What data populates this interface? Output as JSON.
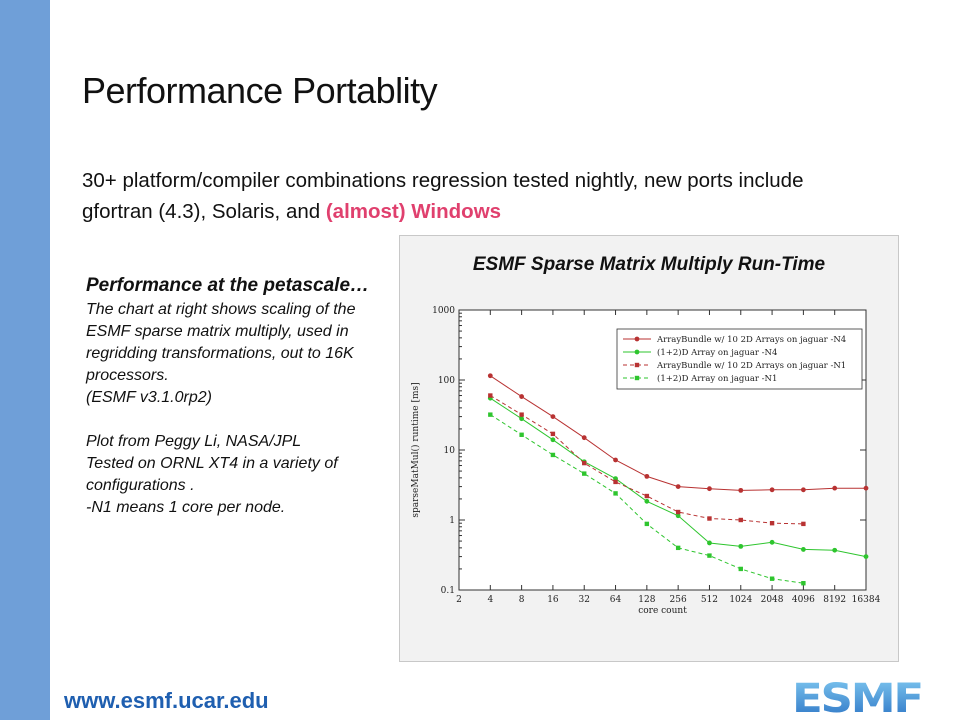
{
  "slide": {
    "title": "Performance Portablity",
    "subtitle_main": "30+ platform/compiler combinations regression tested nightly, new ports include gfortran (4.3), Solaris, and ",
    "subtitle_highlight": "(almost) Windows",
    "left": {
      "heading": "Performance at the petascale…",
      "p1": "The chart at right shows scaling of the ESMF sparse matrix multiply, used in regridding transformations, out to 16K processors.",
      "p2": "(ESMF v3.1.0rp2)",
      "p3": "Plot from Peggy Li, NASA/JPL",
      "p4": "Tested on ORNL XT4 in a variety of configurations .",
      "p5": "-N1 means 1 core per node."
    },
    "url": "www.esmf.ucar.edu",
    "logo_text": "ESMF",
    "colors": {
      "sidebar": "#6f9fd8",
      "highlight": "#e0406e",
      "url": "#1f5fb0",
      "logo": "#3a8fd0"
    }
  },
  "chart_data": {
    "type": "line",
    "title": "ESMF Sparse Matrix Multiply Run-Time",
    "xlabel": "core count",
    "ylabel": "sparseMatMul() runtime [ms]",
    "x_scale": "log2",
    "y_scale": "log10",
    "xlim": [
      2,
      16384
    ],
    "ylim": [
      0.1,
      1000
    ],
    "x_ticks": [
      "2",
      "4",
      "8",
      "16",
      "32",
      "64",
      "128",
      "256",
      "512",
      "1024",
      "2048",
      "4096",
      "8192",
      "16384"
    ],
    "y_ticks": [
      "0.1",
      "1",
      "10",
      "100",
      "1000"
    ],
    "legend_position": "top-right",
    "grid": false,
    "series": [
      {
        "name": "ArrayBundle w/ 10 2D Arrays on jaguar -N4",
        "color": "#b83232",
        "dash": false,
        "marker": "circle",
        "x": [
          4,
          8,
          16,
          32,
          64,
          128,
          256,
          512,
          1024,
          2048,
          4096,
          8192,
          16384
        ],
        "y": [
          115,
          58,
          30,
          15,
          7.2,
          4.2,
          3.0,
          2.8,
          2.65,
          2.7,
          2.7,
          2.85,
          2.85
        ]
      },
      {
        "name": "(1+2)D Array on jaguar -N4",
        "color": "#2ec52e",
        "dash": false,
        "marker": "circle",
        "x": [
          4,
          8,
          16,
          32,
          64,
          128,
          256,
          512,
          1024,
          2048,
          4096,
          8192,
          16384
        ],
        "y": [
          55,
          28,
          14,
          6.8,
          3.9,
          1.85,
          1.15,
          0.47,
          0.42,
          0.48,
          0.38,
          0.37,
          0.3
        ]
      },
      {
        "name": "ArrayBundle w/ 10 2D Arrays on jaguar -N1",
        "color": "#b83232",
        "dash": true,
        "marker": "square",
        "x": [
          4,
          8,
          16,
          32,
          64,
          128,
          256,
          512,
          1024,
          2048,
          4096
        ],
        "y": [
          60,
          32,
          17,
          6.5,
          3.5,
          2.2,
          1.3,
          1.05,
          1.0,
          0.9,
          0.88
        ]
      },
      {
        "name": "(1+2)D Array on jaguar -N1",
        "color": "#2ec52e",
        "dash": true,
        "marker": "square",
        "x": [
          4,
          8,
          16,
          32,
          64,
          128,
          256,
          512,
          1024,
          2048,
          4096
        ],
        "y": [
          32,
          16.5,
          8.5,
          4.6,
          2.4,
          0.88,
          0.4,
          0.31,
          0.2,
          0.145,
          0.125
        ]
      }
    ]
  }
}
